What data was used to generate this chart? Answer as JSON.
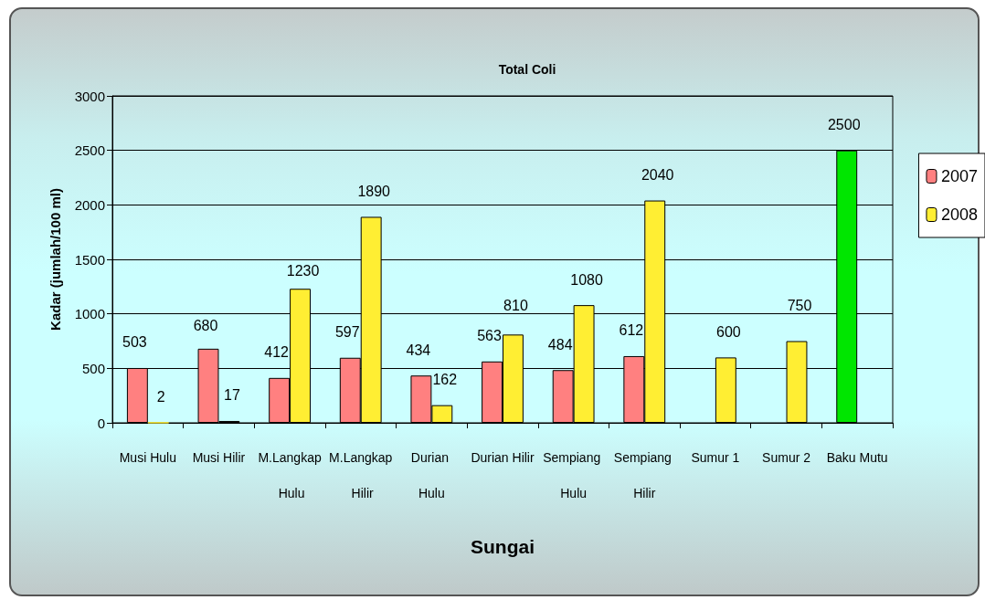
{
  "chart_data": {
    "type": "bar",
    "title": "Total Coli",
    "xlabel": "Sungai",
    "ylabel": "Kadar (jumlah/100 ml)",
    "categories": [
      "Musi Hulu",
      "Musi Hilir",
      "M.Langkap Hulu",
      "M.Langkap Hilir",
      "Durian Hulu",
      "Durian Hilir",
      "Sempiang Hulu",
      "Sempiang Hilir",
      "Sumur 1",
      "Sumur 2",
      "Baku Mutu"
    ],
    "series": [
      {
        "name": "2007",
        "color": "#ff8080",
        "colors": [
          "#ff8080",
          "#ff8080",
          "#ff8080",
          "#ff8080",
          "#ff8080",
          "#ff8080",
          "#ff8080",
          "#ff8080",
          "#ff8080",
          "#ff8080",
          "#00e600"
        ],
        "values": [
          503,
          680,
          412,
          597,
          434,
          563,
          484,
          612,
          null,
          null,
          2500
        ]
      },
      {
        "name": "2008",
        "color": "#ffee33",
        "values": [
          2,
          17,
          1230,
          1890,
          162,
          810,
          1080,
          2040,
          600,
          750,
          null
        ]
      }
    ],
    "ylim": [
      0,
      3000
    ],
    "yticks": [
      0,
      500,
      1000,
      1500,
      2000,
      2500,
      3000
    ],
    "grid": "y",
    "legend": "right",
    "data_labels": true
  }
}
